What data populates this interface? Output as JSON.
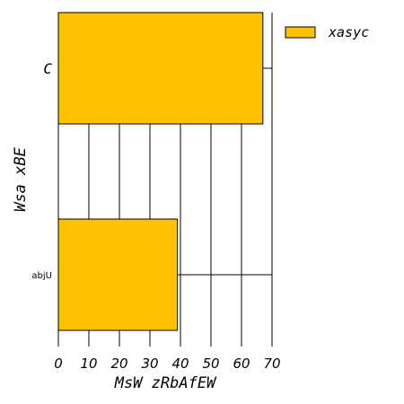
{
  "chart_data": {
    "type": "bar",
    "orientation": "horizontal",
    "categories": [
      "abjU",
      "C"
    ],
    "series": [
      {
        "name": "xasyc",
        "values": [
          39,
          67
        ],
        "color": "#FFC000"
      }
    ],
    "xlabel": "MsW zRbAfEW",
    "ylabel": "Wsa xBE",
    "xlim": [
      0,
      70
    ],
    "xticks": [
      "0",
      "10",
      "20",
      "30",
      "40",
      "50",
      "60",
      "70"
    ],
    "grid": "x",
    "legend_placement": "top-right"
  }
}
